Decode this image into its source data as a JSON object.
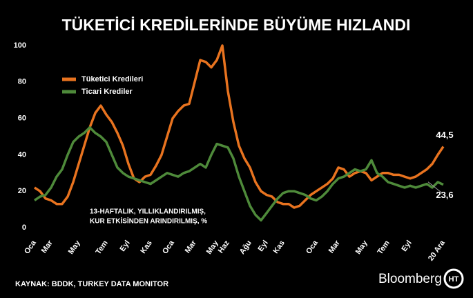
{
  "chart_data": {
    "type": "line",
    "title": "TÜKETİCİ KREDİLERİNDE BÜYÜME HIZLANDI",
    "annotation": [
      "13-HAFTALIK, YILLIKLANDIRILMIŞ,",
      "KUR ETKİSİNDEN ARINDIRILMIŞ, %"
    ],
    "source": "KAYNAK: BDDK, TURKEY DATA MONITOR",
    "brand": "Bloomberg",
    "brand_logo": "HT",
    "categories": [
      "Oca",
      null,
      null,
      "Mar",
      null,
      null,
      null,
      null,
      "May",
      null,
      null,
      null,
      null,
      "Tem",
      null,
      null,
      null,
      "Eyl",
      null,
      null,
      null,
      "Kas",
      null,
      null,
      null,
      "Oca",
      null,
      null,
      null,
      "Mar",
      null,
      null,
      null,
      "May",
      null,
      "Haz",
      null,
      null,
      null,
      "Ağu",
      null,
      null,
      "Eyl",
      null,
      null,
      "Kas",
      null,
      null,
      null,
      null,
      null,
      "Oca",
      null,
      null,
      null,
      "Mar",
      null,
      null,
      null,
      null,
      "May",
      null,
      null,
      null,
      "Tem",
      null,
      null,
      null,
      "Eyl",
      null,
      null,
      null,
      null,
      null,
      "20 Ara"
    ],
    "series": [
      {
        "name": "Tüketici Kredileri",
        "color": "#e8731f",
        "values": [
          22,
          20,
          16,
          15,
          13,
          13,
          17,
          25,
          35,
          45,
          55,
          63,
          67,
          62,
          58,
          52,
          45,
          35,
          27,
          25,
          28,
          29,
          34,
          40,
          50,
          60,
          64,
          67,
          68,
          80,
          92,
          91,
          88,
          92,
          100,
          75,
          58,
          45,
          38,
          33,
          25,
          20,
          18,
          17,
          14,
          13,
          13,
          11,
          12,
          15,
          18,
          20,
          22,
          24,
          27,
          33,
          32,
          28,
          30,
          31,
          30,
          26,
          28,
          30,
          30,
          29,
          29,
          28,
          27,
          28,
          30,
          32,
          35,
          40,
          44.5
        ],
        "value_labels": [
          null,
          null,
          null,
          null,
          null,
          null,
          null,
          null,
          null,
          null,
          null,
          null,
          null,
          null,
          null,
          null,
          null,
          null,
          null,
          null,
          null,
          null,
          null,
          null,
          null,
          null,
          null,
          null,
          null,
          null,
          null,
          null,
          null,
          null,
          null,
          null,
          null,
          null,
          null,
          null,
          null,
          null,
          null,
          null,
          null,
          null,
          null,
          null,
          null,
          null,
          null,
          null,
          null,
          null,
          null,
          null,
          null,
          null,
          null,
          null,
          null,
          null,
          null,
          null,
          null,
          null,
          null,
          null,
          null,
          null,
          null,
          null,
          null,
          null,
          "44,5"
        ]
      },
      {
        "name": "Ticari Krediler",
        "color": "#4e8a3a",
        "values": [
          15,
          17,
          18,
          22,
          28,
          32,
          40,
          47,
          50,
          52,
          55,
          52,
          50,
          47,
          40,
          33,
          30,
          28,
          27,
          26,
          25,
          24,
          26,
          28,
          30,
          29,
          28,
          30,
          31,
          33,
          35,
          33,
          40,
          46,
          45,
          44,
          38,
          28,
          20,
          12,
          7,
          4,
          8,
          12,
          16,
          19,
          20,
          20,
          19,
          18,
          16,
          15,
          17,
          20,
          24,
          27,
          28,
          30,
          32,
          31,
          32,
          37,
          30,
          28,
          25,
          24,
          23,
          22,
          23,
          22,
          23,
          24,
          22,
          25,
          23.6
        ],
        "value_labels": [
          null,
          null,
          null,
          null,
          null,
          null,
          null,
          null,
          null,
          null,
          null,
          null,
          null,
          null,
          null,
          null,
          null,
          null,
          null,
          null,
          null,
          null,
          null,
          null,
          null,
          null,
          null,
          null,
          null,
          null,
          null,
          null,
          null,
          null,
          null,
          null,
          null,
          null,
          null,
          null,
          null,
          null,
          null,
          null,
          null,
          null,
          null,
          null,
          null,
          null,
          null,
          null,
          null,
          null,
          null,
          null,
          null,
          null,
          null,
          null,
          null,
          null,
          null,
          null,
          null,
          null,
          null,
          null,
          null,
          null,
          null,
          null,
          null,
          null,
          "23,6"
        ]
      }
    ],
    "ylim": [
      0,
      100
    ],
    "yticks": [
      0,
      20,
      40,
      60,
      80,
      100
    ],
    "grid": false,
    "legend": "upper-left"
  }
}
